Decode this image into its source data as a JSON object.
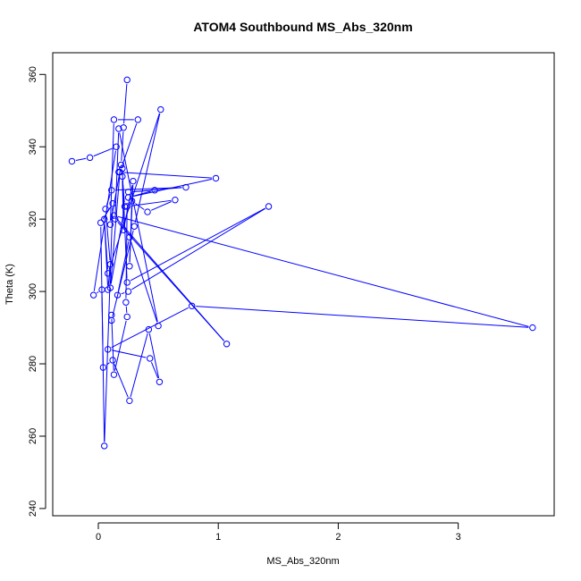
{
  "chart_data": {
    "type": "line",
    "title": "ATOM4 Southbound MS_Abs_320nm",
    "xlabel": "MS_Abs_320nm",
    "ylabel": "Theta (K)",
    "xlim": [
      -0.38,
      3.8
    ],
    "ylim": [
      238,
      366
    ],
    "xticks": [
      0,
      1,
      2,
      3
    ],
    "yticks": [
      240,
      260,
      280,
      300,
      320,
      340,
      360
    ],
    "grid": false,
    "series_color": "#0000ff",
    "marker": "open-circle",
    "points": [
      [
        0.24,
        358.5
      ],
      [
        0.21,
        345.3
      ],
      [
        0.19,
        335.0
      ],
      [
        0.1,
        318.5
      ],
      [
        0.13,
        347.5
      ],
      [
        0.33,
        347.5
      ],
      [
        0.18,
        333.0
      ],
      [
        0.1,
        301.0
      ],
      [
        0.22,
        323.5
      ],
      [
        0.2,
        331.8
      ],
      [
        0.21,
        317.0
      ],
      [
        0.29,
        330.5
      ],
      [
        0.26,
        307.0
      ],
      [
        0.28,
        325.0
      ],
      [
        0.41,
        322.0
      ],
      [
        0.64,
        325.3
      ],
      [
        0.24,
        323.5
      ],
      [
        0.23,
        297.0
      ],
      [
        0.24,
        293.0
      ],
      [
        0.13,
        277.0
      ],
      [
        0.11,
        293.5
      ],
      [
        0.11,
        292.0
      ],
      [
        0.3,
        318.0
      ],
      [
        0.52,
        350.3
      ],
      [
        0.08,
        305.0
      ],
      [
        0.05,
        320.0
      ],
      [
        0.08,
        300.5
      ],
      [
        0.1,
        307.5
      ],
      [
        0.06,
        322.8
      ],
      [
        0.11,
        328.0
      ],
      [
        0.73,
        328.8
      ],
      [
        0.25,
        327.5
      ],
      [
        0.47,
        328.0
      ],
      [
        0.25,
        326.0
      ],
      [
        0.98,
        331.3
      ],
      [
        0.17,
        333.0
      ],
      [
        0.2,
        334.0
      ],
      [
        0.24,
        302.5
      ],
      [
        1.42,
        323.5
      ],
      [
        0.25,
        300.0
      ],
      [
        0.16,
        299.0
      ],
      [
        0.26,
        315.0
      ],
      [
        0.5,
        290.5
      ],
      [
        0.17,
        345.0
      ],
      [
        0.14,
        320.0
      ],
      [
        1.07,
        285.5
      ],
      [
        0.13,
        321.0
      ],
      [
        3.62,
        290.0
      ],
      [
        0.78,
        296.0
      ],
      [
        0.08,
        284.0
      ],
      [
        0.43,
        281.5
      ],
      [
        0.51,
        275.0
      ],
      [
        0.42,
        289.5
      ],
      [
        0.26,
        269.8
      ],
      [
        0.12,
        281.0
      ],
      [
        0.04,
        279.0
      ],
      [
        0.02,
        319.0
      ],
      [
        0.12,
        324.3
      ],
      [
        0.05,
        257.3
      ],
      [
        0.03,
        300.5
      ],
      [
        -0.04,
        299.0
      ],
      [
        0.15,
        340.0
      ],
      [
        -0.07,
        337.0
      ],
      [
        -0.22,
        336.0
      ]
    ]
  }
}
